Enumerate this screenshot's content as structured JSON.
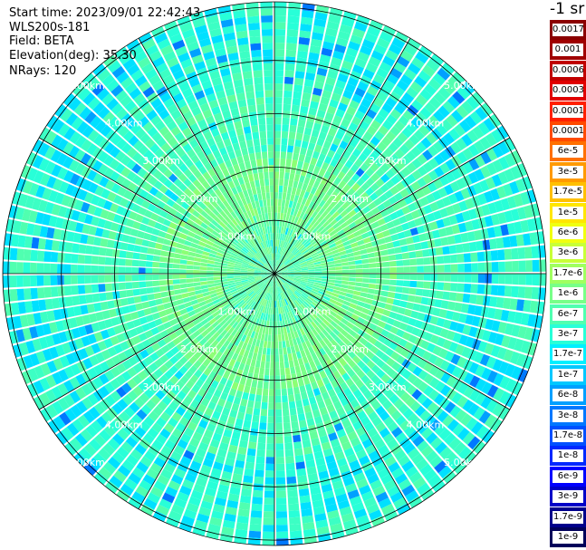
{
  "meta": {
    "start_time": "Start time: 2023/09/01 22:42:43",
    "instrument": "WLS200s-181",
    "field": "Field: BETA",
    "elevation": "Elevation(deg): 35.30",
    "nrays": "NRays: 120"
  },
  "range_rings": {
    "labels": [
      "1.00km",
      "2.00km",
      "3.00km",
      "4.00km",
      "5.00km"
    ],
    "values_km": [
      1,
      2,
      3,
      4,
      5
    ]
  },
  "legend": {
    "title": "-1 sr",
    "items": [
      {
        "label": "0.0017",
        "color": "#8b0000"
      },
      {
        "label": "0.001",
        "color": "#a00000"
      },
      {
        "label": "0.0006",
        "color": "#c00000"
      },
      {
        "label": "0.0003",
        "color": "#e00000"
      },
      {
        "label": "0.00017",
        "color": "#ff2000"
      },
      {
        "label": "0.0001",
        "color": "#ff4a00"
      },
      {
        "label": "6e-5",
        "color": "#ff7000"
      },
      {
        "label": "3e-5",
        "color": "#ff9a00"
      },
      {
        "label": "1.7e-5",
        "color": "#ffc000"
      },
      {
        "label": "1e-5",
        "color": "#ffe600"
      },
      {
        "label": "6e-6",
        "color": "#f0ff10"
      },
      {
        "label": "3e-6",
        "color": "#c8ff38"
      },
      {
        "label": "1.7e-6",
        "color": "#a0ff60"
      },
      {
        "label": "1e-6",
        "color": "#78ff88"
      },
      {
        "label": "6e-7",
        "color": "#50ffb0"
      },
      {
        "label": "3e-7",
        "color": "#28ffd8"
      },
      {
        "label": "1.7e-7",
        "color": "#00f0ff"
      },
      {
        "label": "1e-7",
        "color": "#00c8ff"
      },
      {
        "label": "6e-8",
        "color": "#00a0ff"
      },
      {
        "label": "3e-8",
        "color": "#0078ff"
      },
      {
        "label": "1.7e-8",
        "color": "#0050ff"
      },
      {
        "label": "1e-8",
        "color": "#0028ff"
      },
      {
        "label": "6e-9",
        "color": "#0000ff"
      },
      {
        "label": "3e-9",
        "color": "#0000c8"
      },
      {
        "label": "1.7e-9",
        "color": "#00008c"
      },
      {
        "label": "1e-9",
        "color": "#00005a"
      }
    ]
  }
}
